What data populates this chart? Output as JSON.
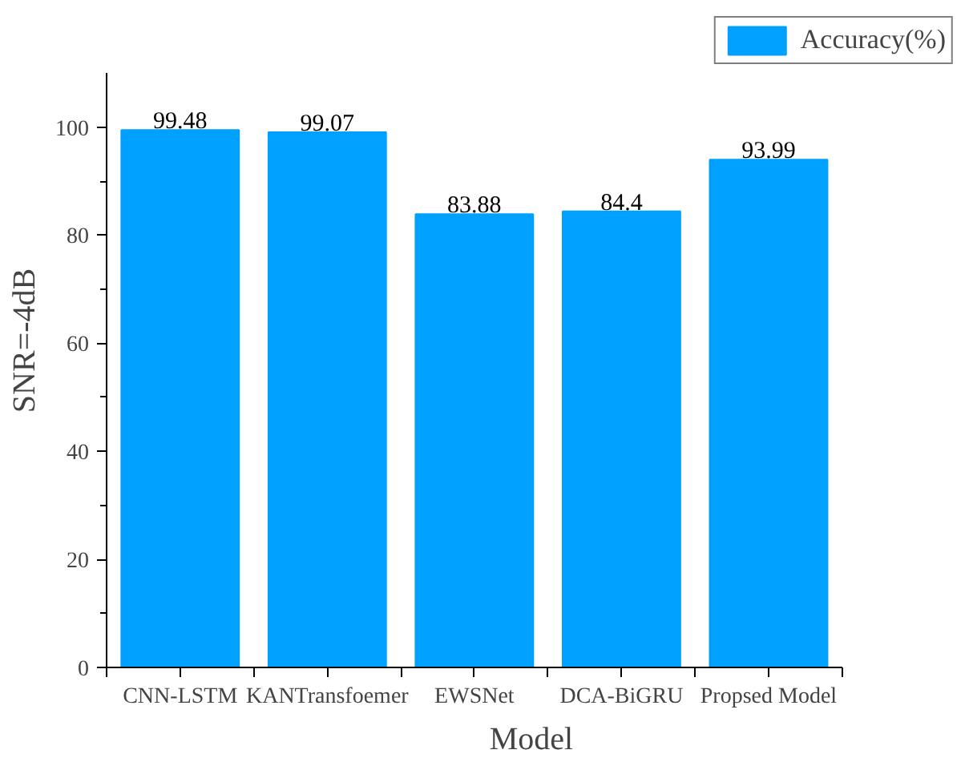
{
  "chart_data": {
    "type": "bar",
    "xlabel": "Model",
    "ylabel": "SNR=-4dB",
    "categories": [
      "CNN-LSTM",
      "KANTransfoemer",
      "EWSNet",
      "DCA-BiGRU",
      "Propsed Model"
    ],
    "series": [
      {
        "name": "Accuracy(%)",
        "color": "#00a0ff",
        "values": [
          99.48,
          99.07,
          83.88,
          84.4,
          93.99
        ]
      }
    ],
    "ylim": [
      0,
      110
    ],
    "yticks": [
      0,
      20,
      40,
      60,
      80,
      100
    ],
    "data_labels": true,
    "grid": false,
    "legend": "top right"
  }
}
